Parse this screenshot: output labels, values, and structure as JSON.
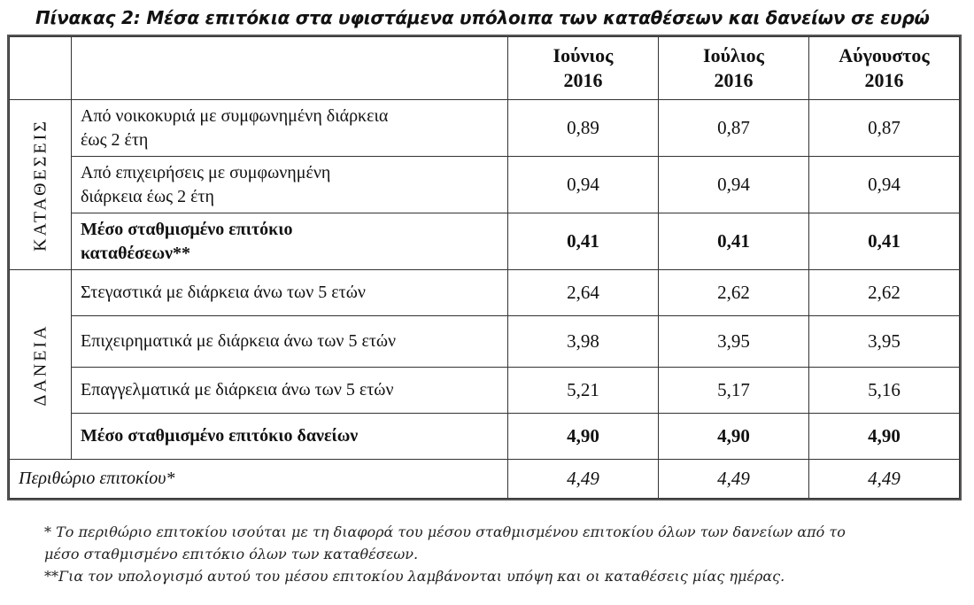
{
  "title": "Πίνακας 2: Μέσα επιτόκια στα υφιστάμενα υπόλοιπα των καταθέσεων και δανείων σε ευρώ",
  "columns": [
    {
      "line1": "Ιούνιος",
      "line2": "2016"
    },
    {
      "line1": "Ιούλιος",
      "line2": "2016"
    },
    {
      "line1": "Αύγουστος",
      "line2": "2016"
    }
  ],
  "groups": {
    "deposits": "ΚΑΤΑΘΕΣΕΙΣ",
    "loans": "ΔΑΝΕΙΑ"
  },
  "rows": [
    {
      "label1": "Από νοικοκυριά με συμφωνημένη διάρκεια",
      "label2": "έως 2 έτη",
      "values": [
        "0,89",
        "0,87",
        "0,87"
      ]
    },
    {
      "label1": "Από επιχειρήσεις με συμφωνημένη",
      "label2": "διάρκεια έως 2 έτη",
      "values": [
        "0,94",
        "0,94",
        "0,94"
      ]
    },
    {
      "label1": "Μέσο σταθμισμένο επιτόκιο",
      "label2": "καταθέσεων**",
      "values": [
        "0,41",
        "0,41",
        "0,41"
      ]
    },
    {
      "label1": "Στεγαστικά με διάρκεια άνω των 5 ετών",
      "values": [
        "2,64",
        "2,62",
        "2,62"
      ]
    },
    {
      "label1": "Επιχειρηματικά με διάρκεια άνω των 5 ετών",
      "values": [
        "3,98",
        "3,95",
        "3,95"
      ]
    },
    {
      "label1": "Επαγγελματικά με διάρκεια άνω των 5 ετών",
      "values": [
        "5,21",
        "5,17",
        "5,16"
      ]
    },
    {
      "label1": "Μέσο σταθμισμένο επιτόκιο δανείων",
      "values": [
        "4,90",
        "4,90",
        "4,90"
      ]
    },
    {
      "label1": "Περιθώριο επιτοκίου*",
      "values": [
        "4,49",
        "4,49",
        "4,49"
      ]
    }
  ],
  "footnotes": {
    "note1_line1": "* Το περιθώριο επιτοκίου ισούται με τη διαφορά του μέσου σταθμισμένου επιτοκίου όλων των δανείων από το",
    "note1_line2": "μέσο σταθμισμένο επιτόκιο όλων των καταθέσεων.",
    "note2": "**Για τον υπολογισμό αυτού του μέσου επιτοκίου λαμβάνονται υπόψη και οι καταθέσεις μίας ημέρας."
  }
}
